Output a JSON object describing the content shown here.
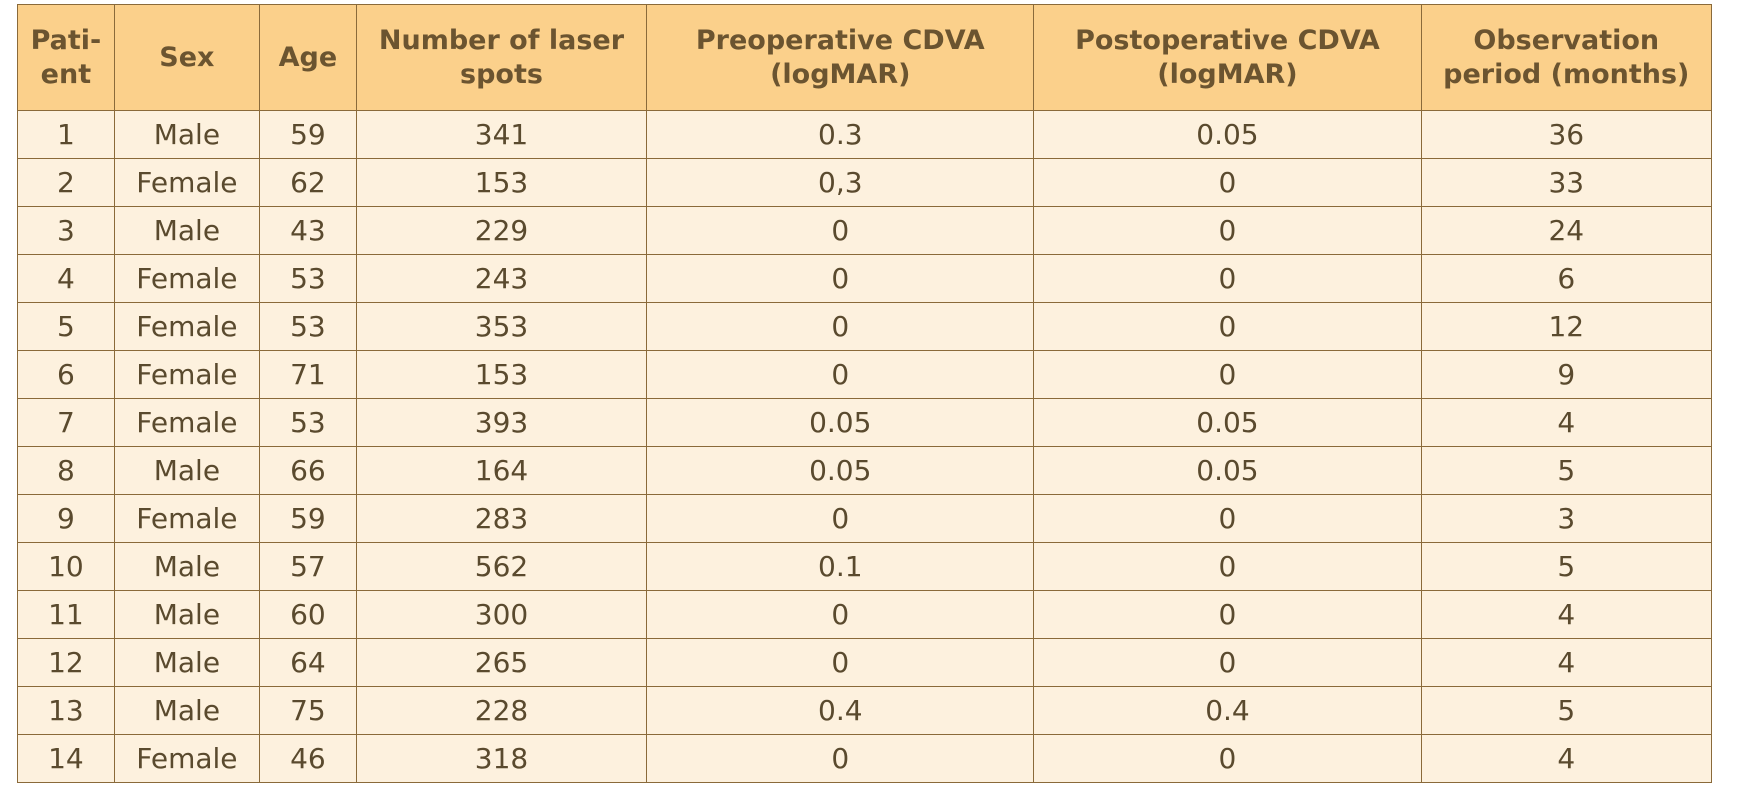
{
  "table": {
    "headers": [
      {
        "line1": "Pati-",
        "line2": "ent"
      },
      {
        "line1": "Sex",
        "line2": ""
      },
      {
        "line1": "Age",
        "line2": ""
      },
      {
        "line1": "Number of laser",
        "line2": "spots"
      },
      {
        "line1": "Preoperative CDVA",
        "line2": "(logMAR)"
      },
      {
        "line1": "Postoperative CDVA",
        "line2": "(logMAR)"
      },
      {
        "line1": "Observation",
        "line2": "period (months)"
      }
    ],
    "rows": [
      [
        "1",
        "Male",
        "59",
        "341",
        "0.3",
        "0.05",
        "36"
      ],
      [
        "2",
        "Female",
        "62",
        "153",
        "0,3",
        "0",
        "33"
      ],
      [
        "3",
        "Male",
        "43",
        "229",
        "0",
        "0",
        "24"
      ],
      [
        "4",
        "Female",
        "53",
        "243",
        "0",
        "0",
        "6"
      ],
      [
        "5",
        "Female",
        "53",
        "353",
        "0",
        "0",
        "12"
      ],
      [
        "6",
        "Female",
        "71",
        "153",
        "0",
        "0",
        "9"
      ],
      [
        "7",
        "Female",
        "53",
        "393",
        "0.05",
        "0.05",
        "4"
      ],
      [
        "8",
        "Male",
        "66",
        "164",
        "0.05",
        "0.05",
        "5"
      ],
      [
        "9",
        "Female",
        "59",
        "283",
        "0",
        "0",
        "3"
      ],
      [
        "10",
        "Male",
        "57",
        "562",
        "0.1",
        "0",
        "5"
      ],
      [
        "11",
        "Male",
        "60",
        "300",
        "0",
        "0",
        "4"
      ],
      [
        "12",
        "Male",
        "64",
        "265",
        "0",
        "0",
        "4"
      ],
      [
        "13",
        "Male",
        "75",
        "228",
        "0.4",
        "0.4",
        "5"
      ],
      [
        "14",
        "Female",
        "46",
        "318",
        "0",
        "0",
        "4"
      ]
    ]
  },
  "colors": {
    "header_bg": "#fbd08b",
    "cell_bg": "#fdf1de",
    "border": "#8a6a3a",
    "text": "#5a4a2e"
  }
}
